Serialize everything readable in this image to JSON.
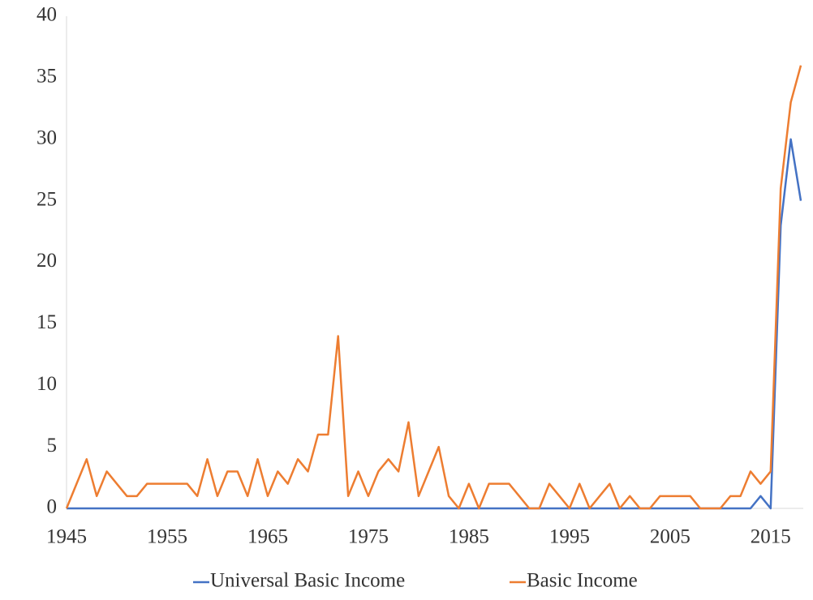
{
  "chart_data": {
    "type": "line",
    "x": [
      1945,
      1946,
      1947,
      1948,
      1949,
      1950,
      1951,
      1952,
      1953,
      1954,
      1955,
      1956,
      1957,
      1958,
      1959,
      1960,
      1961,
      1962,
      1963,
      1964,
      1965,
      1966,
      1967,
      1968,
      1969,
      1970,
      1971,
      1972,
      1973,
      1974,
      1975,
      1976,
      1977,
      1978,
      1979,
      1980,
      1981,
      1982,
      1983,
      1984,
      1985,
      1986,
      1987,
      1988,
      1989,
      1990,
      1991,
      1992,
      1993,
      1994,
      1995,
      1996,
      1997,
      1998,
      1999,
      2000,
      2001,
      2002,
      2003,
      2004,
      2005,
      2006,
      2007,
      2008,
      2009,
      2010,
      2011,
      2012,
      2013,
      2014,
      2015,
      2016,
      2017,
      2018
    ],
    "series": [
      {
        "name": "Universal Basic Income",
        "color": "#4472c4",
        "values": [
          0,
          0,
          0,
          0,
          0,
          0,
          0,
          0,
          0,
          0,
          0,
          0,
          0,
          0,
          0,
          0,
          0,
          0,
          0,
          0,
          0,
          0,
          0,
          0,
          0,
          0,
          0,
          0,
          0,
          0,
          0,
          0,
          0,
          0,
          0,
          0,
          0,
          0,
          0,
          0,
          0,
          0,
          0,
          0,
          0,
          0,
          0,
          0,
          0,
          0,
          0,
          0,
          0,
          0,
          0,
          0,
          0,
          0,
          0,
          0,
          0,
          0,
          0,
          0,
          0,
          0,
          0,
          0,
          0,
          1,
          0,
          23,
          30,
          25
        ]
      },
      {
        "name": "Basic Income",
        "color": "#ed7d31",
        "values": [
          0,
          2,
          4,
          1,
          3,
          2,
          1,
          1,
          2,
          2,
          2,
          2,
          2,
          1,
          4,
          1,
          3,
          3,
          1,
          4,
          1,
          3,
          2,
          4,
          3,
          6,
          6,
          14,
          1,
          3,
          1,
          3,
          4,
          3,
          7,
          1,
          3,
          5,
          1,
          0,
          2,
          0,
          2,
          2,
          2,
          1,
          0,
          0,
          2,
          1,
          0,
          2,
          0,
          1,
          2,
          0,
          1,
          0,
          0,
          1,
          1,
          1,
          1,
          0,
          0,
          0,
          1,
          1,
          3,
          2,
          3,
          26,
          33,
          36
        ]
      }
    ],
    "xlim": [
      1945,
      2018
    ],
    "xticks": [
      1945,
      1955,
      1965,
      1975,
      1985,
      1995,
      2005,
      2015
    ],
    "ylim": [
      0,
      40
    ],
    "yticks": [
      0,
      5,
      10,
      15,
      20,
      25,
      30,
      35,
      40
    ],
    "legend": "bottom"
  }
}
